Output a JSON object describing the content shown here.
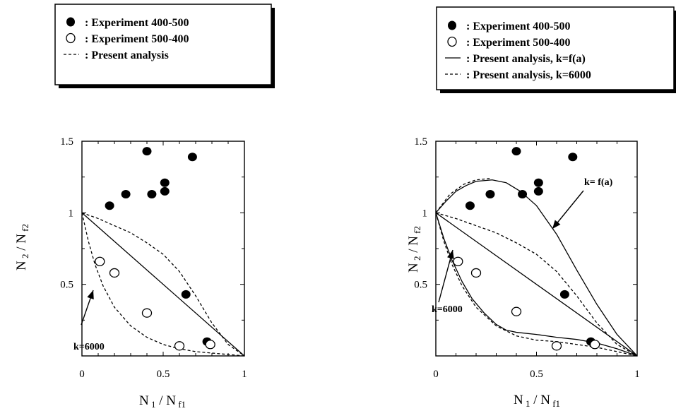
{
  "chart_data": [
    {
      "type": "scatter",
      "xlabel": {
        "main": "N",
        "sub1": "1",
        "sep": " / N",
        "sub2": "f1"
      },
      "ylabel": {
        "main": "N",
        "sub1": "2",
        "sep": " / N",
        "sub2": "f2"
      },
      "xlim": [
        0,
        1
      ],
      "ylim": [
        0,
        1.5
      ],
      "x_ticks": [
        {
          "v": 0,
          "label": "0"
        },
        {
          "v": 0.5,
          "label": "0.5"
        },
        {
          "v": 1,
          "label": "1"
        }
      ],
      "y_ticks": [
        {
          "v": 0.5,
          "label": "0.5"
        },
        {
          "v": 1,
          "label": "1"
        },
        {
          "v": 1.5,
          "label": "1.5"
        }
      ],
      "legend": [
        {
          "marker": "filled-circle",
          "label": ": Experiment 400-500"
        },
        {
          "marker": "open-circle",
          "label": ": Experiment 500-400"
        },
        {
          "marker": "dashed-line",
          "label": ": Present analysis"
        }
      ],
      "annotations": [
        {
          "text": "k=6000"
        }
      ],
      "series": [
        {
          "name": "Experiment 400-500",
          "style": "filled-circle",
          "points": [
            [
              0.17,
              1.05
            ],
            [
              0.27,
              1.13
            ],
            [
              0.4,
              1.43
            ],
            [
              0.43,
              1.13
            ],
            [
              0.51,
              1.21
            ],
            [
              0.51,
              1.15
            ],
            [
              0.68,
              1.39
            ],
            [
              0.64,
              0.43
            ],
            [
              0.77,
              0.1
            ]
          ]
        },
        {
          "name": "Experiment 500-400",
          "style": "open-circle",
          "points": [
            [
              0.11,
              0.66
            ],
            [
              0.2,
              0.58
            ],
            [
              0.4,
              0.3
            ],
            [
              0.6,
              0.07
            ],
            [
              0.79,
              0.08
            ]
          ]
        },
        {
          "name": "Present analysis",
          "style": "dashed",
          "points": [
            [
              0,
              1
            ],
            [
              0.1,
              0.96
            ],
            [
              0.2,
              0.91
            ],
            [
              0.3,
              0.86
            ],
            [
              0.4,
              0.79
            ],
            [
              0.5,
              0.71
            ],
            [
              0.6,
              0.59
            ],
            [
              0.7,
              0.42
            ],
            [
              0.8,
              0.23
            ],
            [
              0.9,
              0.08
            ],
            [
              1,
              0
            ]
          ]
        },
        {
          "name": "",
          "style": "dashed",
          "points": [
            [
              0,
              1
            ],
            [
              0.04,
              0.8
            ],
            [
              0.08,
              0.64
            ],
            [
              0.13,
              0.49
            ],
            [
              0.2,
              0.34
            ],
            [
              0.3,
              0.21
            ],
            [
              0.4,
              0.13
            ],
            [
              0.5,
              0.08
            ],
            [
              0.6,
              0.05
            ],
            [
              0.7,
              0.03
            ],
            [
              0.8,
              0.02
            ],
            [
              0.9,
              0.01
            ],
            [
              1,
              0
            ]
          ]
        },
        {
          "name": "",
          "style": "solid",
          "points": [
            [
              0,
              1
            ],
            [
              1,
              0
            ]
          ]
        }
      ]
    },
    {
      "type": "scatter",
      "xlabel": {
        "main": "N",
        "sub1": "1",
        "sep": " / N",
        "sub2": "f1"
      },
      "ylabel": {
        "main": "N",
        "sub1": "2",
        "sep": " / N",
        "sub2": "f2"
      },
      "xlim": [
        0,
        1
      ],
      "ylim": [
        0,
        1.5
      ],
      "x_ticks": [
        {
          "v": 0,
          "label": "0"
        },
        {
          "v": 0.5,
          "label": "0.5"
        },
        {
          "v": 1,
          "label": "1"
        }
      ],
      "y_ticks": [
        {
          "v": 0.5,
          "label": "0.5"
        },
        {
          "v": 1,
          "label": "1"
        },
        {
          "v": 1.5,
          "label": "1.5"
        }
      ],
      "legend": [
        {
          "marker": "filled-circle",
          "label": ": Experiment 400-500"
        },
        {
          "marker": "open-circle",
          "label": ": Experiment 500-400"
        },
        {
          "marker": "solid-line",
          "label": ": Present analysis, k=f(a)"
        },
        {
          "marker": "dashed-line",
          "label": ": Present analysis, k=6000"
        }
      ],
      "annotations": [
        {
          "text": "k= f(a)"
        },
        {
          "text": "k=6000"
        }
      ],
      "series": [
        {
          "name": "Experiment 400-500",
          "style": "filled-circle",
          "points": [
            [
              0.17,
              1.05
            ],
            [
              0.27,
              1.13
            ],
            [
              0.4,
              1.43
            ],
            [
              0.43,
              1.13
            ],
            [
              0.51,
              1.21
            ],
            [
              0.51,
              1.15
            ],
            [
              0.68,
              1.39
            ],
            [
              0.64,
              0.43
            ],
            [
              0.77,
              0.1
            ]
          ]
        },
        {
          "name": "Experiment 500-400",
          "style": "open-circle",
          "points": [
            [
              0.11,
              0.66
            ],
            [
              0.2,
              0.58
            ],
            [
              0.4,
              0.31
            ],
            [
              0.6,
              0.07
            ],
            [
              0.79,
              0.08
            ]
          ]
        },
        {
          "name": "Present analysis, k=f(a)",
          "style": "solid",
          "points": [
            [
              0,
              1
            ],
            [
              0.05,
              1.08
            ],
            [
              0.1,
              1.15
            ],
            [
              0.15,
              1.19
            ],
            [
              0.2,
              1.22
            ],
            [
              0.28,
              1.23
            ],
            [
              0.35,
              1.21
            ],
            [
              0.42,
              1.15
            ],
            [
              0.5,
              1.05
            ],
            [
              0.6,
              0.85
            ],
            [
              0.7,
              0.6
            ],
            [
              0.8,
              0.36
            ],
            [
              0.9,
              0.15
            ],
            [
              1,
              0
            ]
          ]
        },
        {
          "name": "Present analysis, k=f(a)",
          "style": "solid",
          "points": [
            [
              0,
              1
            ],
            [
              0.04,
              0.82
            ],
            [
              0.08,
              0.67
            ],
            [
              0.13,
              0.52
            ],
            [
              0.18,
              0.4
            ],
            [
              0.24,
              0.3
            ],
            [
              0.3,
              0.22
            ],
            [
              0.35,
              0.18
            ],
            [
              0.4,
              0.165
            ],
            [
              0.5,
              0.15
            ],
            [
              0.6,
              0.13
            ],
            [
              0.7,
              0.115
            ],
            [
              0.8,
              0.09
            ],
            [
              0.9,
              0.05
            ],
            [
              1,
              0
            ]
          ]
        },
        {
          "name": "Present analysis, k=6000",
          "style": "dashed",
          "points": [
            [
              0,
              1
            ],
            [
              0.07,
              1.13
            ],
            [
              0.14,
              1.2
            ],
            [
              0.2,
              1.23
            ],
            [
              0.27,
              1.24
            ]
          ]
        },
        {
          "name": "Present analysis, k=6000",
          "style": "dashed",
          "points": [
            [
              0,
              1
            ],
            [
              0.1,
              0.96
            ],
            [
              0.2,
              0.91
            ],
            [
              0.3,
              0.86
            ],
            [
              0.4,
              0.79
            ],
            [
              0.5,
              0.71
            ],
            [
              0.6,
              0.59
            ],
            [
              0.7,
              0.42
            ],
            [
              0.8,
              0.23
            ],
            [
              0.9,
              0.08
            ],
            [
              1,
              0
            ]
          ]
        },
        {
          "name": "Present analysis, k=6000",
          "style": "dashed",
          "points": [
            [
              0,
              1
            ],
            [
              0.04,
              0.8
            ],
            [
              0.08,
              0.64
            ],
            [
              0.13,
              0.49
            ],
            [
              0.2,
              0.34
            ],
            [
              0.3,
              0.21
            ],
            [
              0.4,
              0.14
            ],
            [
              0.5,
              0.11
            ],
            [
              0.6,
              0.1
            ],
            [
              0.7,
              0.08
            ],
            [
              0.8,
              0.06
            ],
            [
              0.9,
              0.03
            ],
            [
              1,
              0
            ]
          ]
        },
        {
          "name": "",
          "style": "solid",
          "points": [
            [
              0,
              1
            ],
            [
              1,
              0
            ]
          ]
        }
      ]
    }
  ]
}
